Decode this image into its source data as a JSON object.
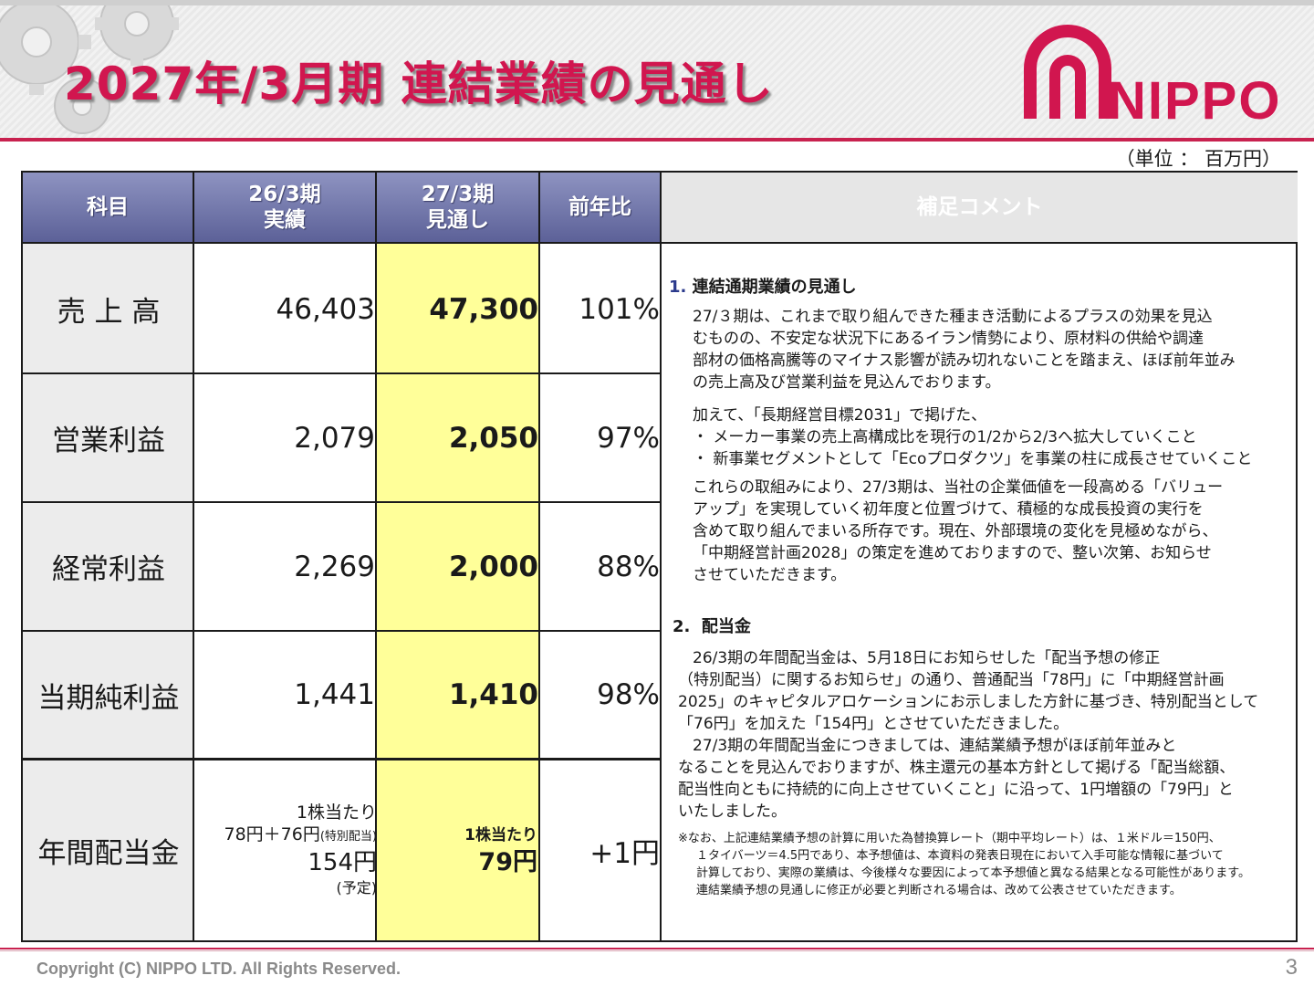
{
  "header": {
    "title": "2027年/3月期 連結業績の見通し",
    "logo_text": "NIPPO",
    "unit": "（単位 ： 百万円）"
  },
  "table": {
    "headers": {
      "item": "科目",
      "prev_line1": "26/3期",
      "prev_line2": "実績",
      "fc_line1": "27/3期",
      "fc_line2": "見通し",
      "yoy": "前年比",
      "comment": "補足コメント"
    },
    "rows": [
      {
        "label": "売 上 高",
        "prev": "46,403",
        "forecast": "47,300",
        "yoy": "101%"
      },
      {
        "label": "営業利益",
        "prev": "2,079",
        "forecast": "2,050",
        "yoy": "97%"
      },
      {
        "label": "経常利益",
        "prev": "2,269",
        "forecast": "2,000",
        "yoy": "88%"
      },
      {
        "label": "当期純利益",
        "prev": "1,441",
        "forecast": "1,410",
        "yoy": "98%"
      }
    ],
    "dividend": {
      "label": "年間配当金",
      "prev_line1": "1株当たり",
      "prev_line2": "78円＋76円",
      "prev_line2_note": "(特別配当)",
      "prev_line3": "154円",
      "prev_line4": "(予定)",
      "fc_line1": "1株当たり",
      "fc_line2": "79円",
      "yoy": "+1円"
    }
  },
  "comments": {
    "s1_num": "1.",
    "s1_title": "連結通期業績の見通し",
    "s1_lines": [
      "27/３期は、これまで取り組んできた種まき活動によるプラスの効果を見込",
      "むものの、不安定な状況下にあるイラン情勢により、原材料の供給や調達",
      "部材の価格高騰等のマイナス影響が読み切れないことを踏まえ、ほぼ前年並み",
      "の売上高及び営業利益を見込んでおります。"
    ],
    "s1b_lines": [
      "加えて、「長期経営目標2031」で掲げた、",
      "・  メーカー事業の売上高構成比を現行の1/2から2/3へ拡大していくこと",
      "・  新事業セグメントとして「Ecoプロダクツ」を事業の柱に成長させていくこと"
    ],
    "s1c_lines": [
      "これらの取組みにより、27/3期は、当社の企業価値を一段高める「バリュー",
      "アップ」を実現していく初年度と位置づけて、積極的な成長投資の実行を",
      "含めて取り組んでまいる所存です。現在、外部環境の変化を見極めながら、",
      "「中期経営計画2028」の策定を進めておりますので、整い次第、お知らせ",
      "させていただきます。"
    ],
    "s2_num": "2.",
    "s2_title": "配当金",
    "s2_lines": [
      "26/3期の年間配当金は、5月18日にお知らせした「配当予想の修正",
      "（特別配当）に関するお知らせ」の通り、普通配当「78円」に「中期経営計画",
      "2025」のキャピタルアロケーションにお示しました方針に基づき、特別配当として",
      "「76円」を加えた「154円」とさせていただきました。",
      "27/3期の年間配当金につきましては、連結業績予想がほぼ前年並みと",
      "なることを見込んでおりますが、株主還元の基本方針として掲げる「配当総額、",
      "配当性向ともに持続的に向上させていくこと」に沿って、1円増額の「79円」と",
      "いたしました。"
    ],
    "note_lines": [
      "※なお、上記連結業績予想の計算に用いた為替換算レート（期中平均レート）は、１米ドル＝150円、",
      "１タイバーツ＝4.5円であり、本予想値は、本資料の発表日現在において入手可能な情報に基づいて",
      "計算しており、実際の業績は、今後様々な要因によって本予想値と異なる結果となる可能性があります。",
      "連結業績予想の見通しに修正が必要と判断される場合は、改めて公表させていただきます。"
    ]
  },
  "footer": {
    "copyright": "Copyright (C)  NIPPO LTD. All Rights Reserved.",
    "page_number": "3"
  },
  "colors": {
    "brand": "#d1164f",
    "header_fill": "#6a6fa6",
    "forecast_fill": "#ffff99",
    "label_fill": "#ececec"
  }
}
